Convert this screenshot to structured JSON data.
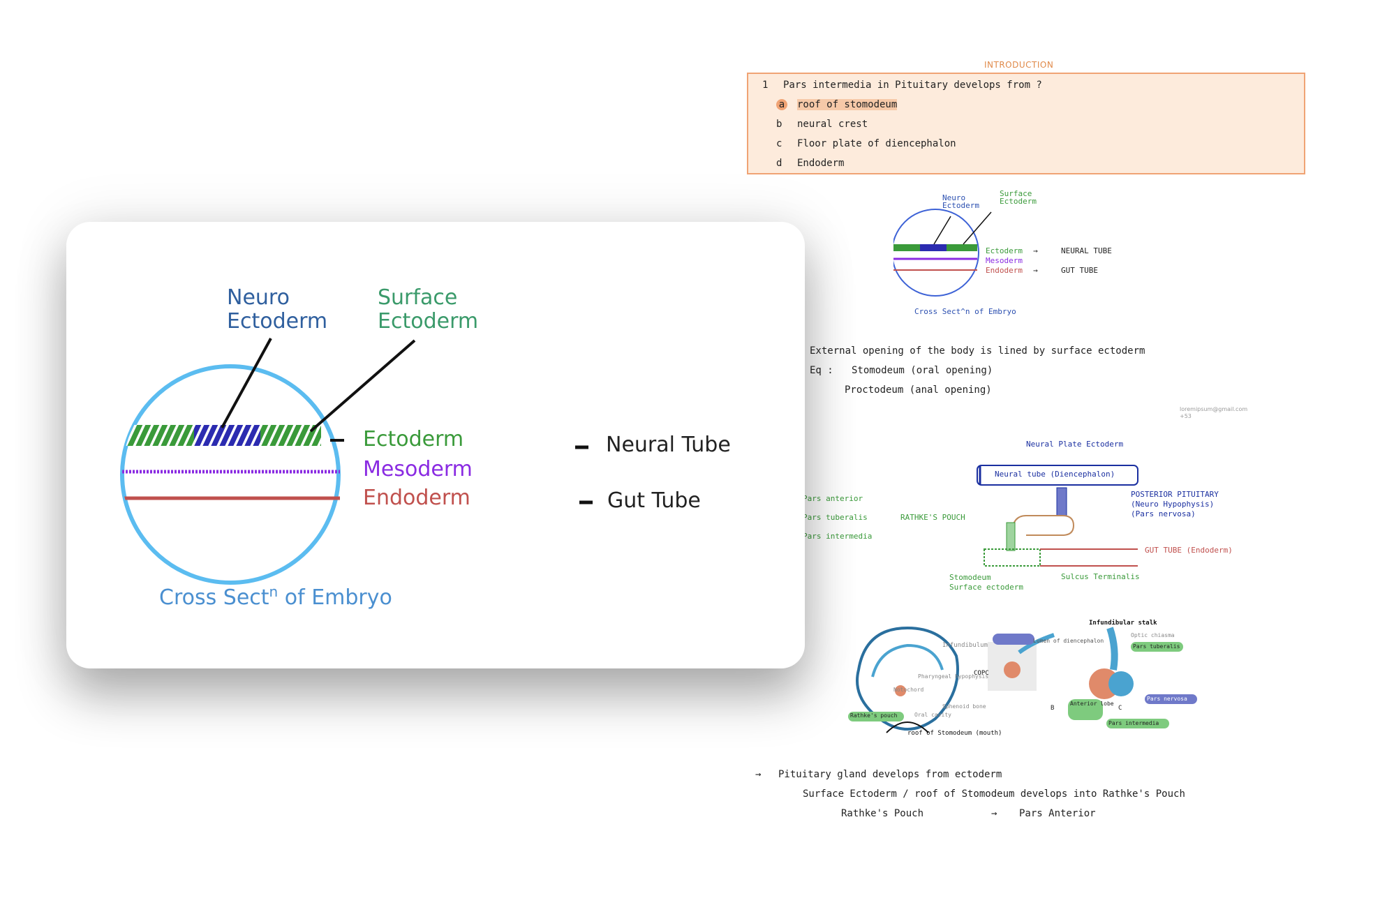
{
  "notes": {
    "intro_title": "INTRODUCTION",
    "mcq": {
      "number": "1",
      "question": "Pars intermedia in Pituitary develops from ?",
      "options": [
        {
          "letter": "a",
          "text": "roof of stomodeum",
          "selected": true
        },
        {
          "letter": "b",
          "text": "neural crest",
          "selected": false
        },
        {
          "letter": "c",
          "text": "Floor plate of diencephalon",
          "selected": false
        },
        {
          "letter": "d",
          "text": "Endoderm",
          "selected": false
        }
      ]
    },
    "small_diagram": {
      "neuro_ectoderm": "Neuro Ectoderm",
      "surface_ectoderm": "Surface Ectoderm",
      "ectoderm": "Ectoderm",
      "mesoderm": "Mesoderm",
      "endoderm": "Endoderm",
      "neural_tube": "NEURAL TUBE",
      "gut_tube": "GUT TUBE",
      "caption": "Cross Sect^n of Embryo"
    },
    "text_line_1": "External opening of the body is lined by surface ectoderm",
    "text_line_2_prefix": "Eq :",
    "text_line_2": "Stomodeum (oral opening)",
    "text_line_3": "Proctodeum (anal opening)",
    "email": "loremipsum@gmail.com",
    "email_2": "+53",
    "pouch_diagram": {
      "neural_plate_ectoderm": "Neural Plate Ectoderm",
      "neural_tube": "Neural tube (Diencephalon)",
      "posterior_pituitary": "POSTERIOR PITUITARY",
      "neuro_hypophysis": "(Neuro Hypophysis)",
      "pars_nervosa": "(Pars nervosa)",
      "pars_anterior": "Pars anterior",
      "pars_tuberalis": "Pars tuberalis",
      "pars_intermedia": "Pars intermedia",
      "rathkes_pouch": "RATHKE'S POUCH",
      "gut_tube": "GUT TUBE (Endoderm)",
      "stomodeum": "Stomodeum",
      "surface_ectoderm": "Surface ectoderm",
      "sulcus_terminalis": "Sulcus Terminalis"
    },
    "anatomy_labels": {
      "infundibulum": "Infundibulum",
      "lumen_of_diencephalon": "Lumen of diencephalon",
      "infundibulum_stalk": "Infundibular stalk",
      "optic_chiasma": "Optic chiasma",
      "pars_tuberalis": "Pars tuberalis",
      "notochord": "Notochord",
      "pharyngeal_hypophysis": "Pharyngeal hypophysis",
      "sphenoid_bone": "Sphenoid bone",
      "anterior_lobe": "Anterior lobe",
      "pars_nervosa": "Pars nervosa",
      "pars_intermedia": "Pars intermedia",
      "rathkes_pouch": "Rathke's pouch",
      "oral_cavity": "Oral cavity",
      "roof_of_stomodeum": "roof of Stomodeum (mouth)",
      "copc": "COPC",
      "letter_b": "B",
      "letter_c": "C"
    },
    "bottom_1": "Pituitary gland develops from ectoderm",
    "bottom_2": "Surface Ectoderm / roof of Stomodeum develops into Rathke's Pouch",
    "bottom_3_a": "Rathke's Pouch",
    "bottom_3_b": "Pars Anterior"
  },
  "popup": {
    "neuro_ectoderm_line1": "Neuro",
    "neuro_ectoderm_line2": "Ectoderm",
    "surface_ectoderm_line1": "Surface",
    "surface_ectoderm_line2": "Ectoderm",
    "ectoderm": "Ectoderm",
    "mesoderm": "Mesoderm",
    "endoderm": "Endoderm",
    "neural_tube": "Neural Tube",
    "gut_tube": "Gut Tube",
    "caption_prefix": "Cross Sect",
    "caption_sup": "n",
    "caption_suffix": " of Embryo",
    "colors": {
      "circle": "#5bbcf0",
      "neuro": "#2b2bb0",
      "surface": "#3a9a3a",
      "mesoderm": "#8a2be2",
      "endoderm": "#c0504d",
      "neuro_label": "#2f5f9e",
      "surface_label": "#3a9a6a",
      "caption": "#4a8fd0"
    }
  }
}
